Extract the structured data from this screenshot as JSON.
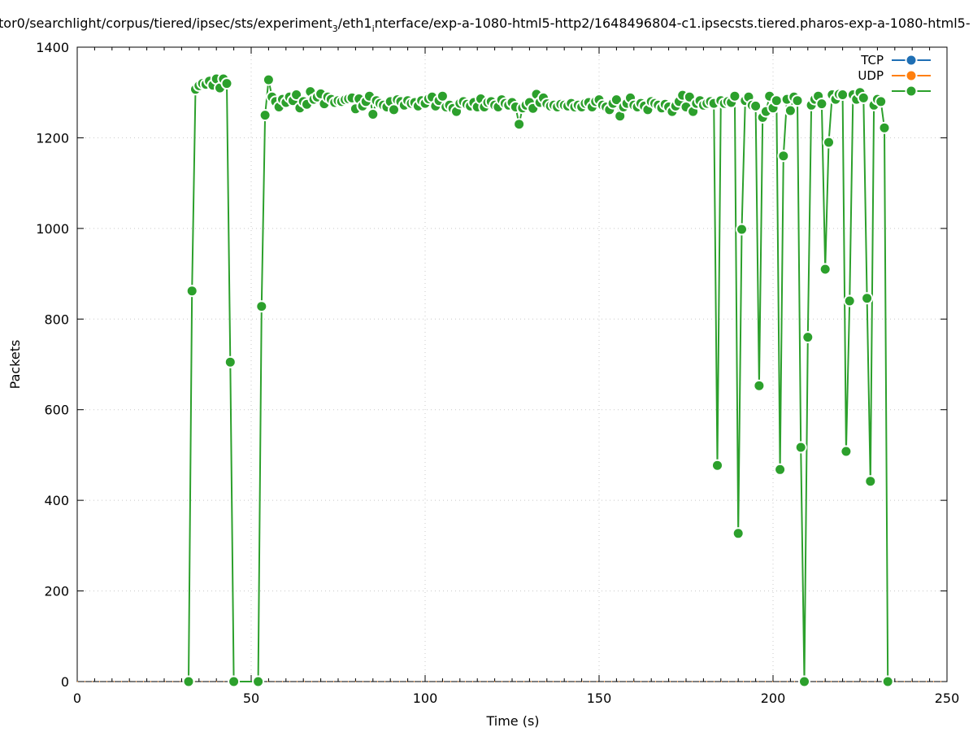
{
  "chart_data": {
    "type": "line",
    "title": "tor0/searchlight/corpus/tiered/ipsec/sts/experiment",
    "title_sub1": "3",
    "title_mid": "/eth1",
    "title_sub2": "i",
    "title_tail": "nterface/exp-a-1080-html5-http2/1648496804-c1.ipsecsts.tiered.pharos-exp-a-1080-html5-",
    "xlabel": "Time (s)",
    "ylabel": "Packets",
    "xlim": [
      0,
      250
    ],
    "ylim": [
      0,
      1400
    ],
    "x_ticks": [
      "0",
      "50",
      "100",
      "150",
      "200",
      "250"
    ],
    "y_ticks": [
      "0",
      "200",
      "400",
      "600",
      "800",
      "1000",
      "1200",
      "1400"
    ],
    "grid": true,
    "legend_position": "top-right",
    "series": [
      {
        "name": "TCP",
        "color": "#1f6fb4",
        "points": []
      },
      {
        "name": "UDP",
        "color": "#ff7f0e",
        "points": []
      },
      {
        "name": "",
        "color": "#2ca02c",
        "points": [
          [
            32,
            0
          ],
          [
            33,
            862
          ],
          [
            34,
            1307
          ],
          [
            35,
            1315
          ],
          [
            36,
            1320
          ],
          [
            37,
            1318
          ],
          [
            38,
            1325
          ],
          [
            39,
            1316
          ],
          [
            40,
            1330
          ],
          [
            41,
            1310
          ],
          [
            42,
            1330
          ],
          [
            43,
            1320
          ],
          [
            44,
            705
          ],
          [
            45,
            0
          ],
          [
            52,
            0
          ],
          [
            53,
            828
          ],
          [
            54,
            1250
          ],
          [
            55,
            1328
          ],
          [
            56,
            1290
          ],
          [
            57,
            1280
          ],
          [
            58,
            1268
          ],
          [
            59,
            1285
          ],
          [
            60,
            1278
          ],
          [
            61,
            1290
          ],
          [
            62,
            1282
          ],
          [
            63,
            1295
          ],
          [
            64,
            1266
          ],
          [
            65,
            1280
          ],
          [
            66,
            1274
          ],
          [
            67,
            1302
          ],
          [
            68,
            1285
          ],
          [
            69,
            1290
          ],
          [
            70,
            1297
          ],
          [
            71,
            1275
          ],
          [
            72,
            1290
          ],
          [
            73,
            1285
          ],
          [
            74,
            1278
          ],
          [
            75,
            1282
          ],
          [
            76,
            1280
          ],
          [
            77,
            1284
          ],
          [
            78,
            1286
          ],
          [
            79,
            1288
          ],
          [
            80,
            1264
          ],
          [
            81,
            1286
          ],
          [
            82,
            1270
          ],
          [
            83,
            1280
          ],
          [
            84,
            1292
          ],
          [
            85,
            1252
          ],
          [
            86,
            1282
          ],
          [
            87,
            1276
          ],
          [
            88,
            1272
          ],
          [
            89,
            1268
          ],
          [
            90,
            1280
          ],
          [
            91,
            1262
          ],
          [
            92,
            1284
          ],
          [
            93,
            1280
          ],
          [
            94,
            1272
          ],
          [
            95,
            1282
          ],
          [
            96,
            1276
          ],
          [
            97,
            1278
          ],
          [
            98,
            1270
          ],
          [
            99,
            1282
          ],
          [
            100,
            1276
          ],
          [
            101,
            1286
          ],
          [
            102,
            1290
          ],
          [
            103,
            1270
          ],
          [
            104,
            1282
          ],
          [
            105,
            1292
          ],
          [
            106,
            1268
          ],
          [
            107,
            1272
          ],
          [
            108,
            1265
          ],
          [
            109,
            1258
          ],
          [
            110,
            1276
          ],
          [
            111,
            1280
          ],
          [
            112,
            1274
          ],
          [
            113,
            1270
          ],
          [
            114,
            1278
          ],
          [
            115,
            1268
          ],
          [
            116,
            1286
          ],
          [
            117,
            1268
          ],
          [
            118,
            1278
          ],
          [
            119,
            1280
          ],
          [
            120,
            1272
          ],
          [
            121,
            1268
          ],
          [
            122,
            1284
          ],
          [
            123,
            1276
          ],
          [
            124,
            1272
          ],
          [
            125,
            1278
          ],
          [
            126,
            1268
          ],
          [
            127,
            1230
          ],
          [
            128,
            1266
          ],
          [
            129,
            1272
          ],
          [
            130,
            1278
          ],
          [
            131,
            1265
          ],
          [
            132,
            1296
          ],
          [
            133,
            1278
          ],
          [
            134,
            1288
          ],
          [
            135,
            1275
          ],
          [
            136,
            1270
          ],
          [
            137,
            1272
          ],
          [
            138,
            1268
          ],
          [
            139,
            1274
          ],
          [
            140,
            1272
          ],
          [
            141,
            1270
          ],
          [
            142,
            1276
          ],
          [
            143,
            1268
          ],
          [
            144,
            1272
          ],
          [
            145,
            1268
          ],
          [
            146,
            1276
          ],
          [
            147,
            1278
          ],
          [
            148,
            1268
          ],
          [
            149,
            1280
          ],
          [
            150,
            1284
          ],
          [
            151,
            1272
          ],
          [
            152,
            1268
          ],
          [
            153,
            1262
          ],
          [
            154,
            1276
          ],
          [
            155,
            1284
          ],
          [
            156,
            1248
          ],
          [
            157,
            1268
          ],
          [
            158,
            1276
          ],
          [
            159,
            1288
          ],
          [
            160,
            1272
          ],
          [
            161,
            1268
          ],
          [
            162,
            1276
          ],
          [
            163,
            1270
          ],
          [
            164,
            1262
          ],
          [
            165,
            1280
          ],
          [
            166,
            1276
          ],
          [
            167,
            1272
          ],
          [
            168,
            1266
          ],
          [
            169,
            1274
          ],
          [
            170,
            1268
          ],
          [
            171,
            1258
          ],
          [
            172,
            1270
          ],
          [
            173,
            1280
          ],
          [
            174,
            1294
          ],
          [
            175,
            1268
          ],
          [
            176,
            1290
          ],
          [
            177,
            1258
          ],
          [
            178,
            1276
          ],
          [
            179,
            1282
          ],
          [
            180,
            1272
          ],
          [
            181,
            1276
          ],
          [
            182,
            1280
          ],
          [
            183,
            1276
          ],
          [
            184,
            477
          ],
          [
            185,
            1282
          ],
          [
            186,
            1276
          ],
          [
            187,
            1280
          ],
          [
            188,
            1278
          ],
          [
            189,
            1292
          ],
          [
            190,
            327
          ],
          [
            191,
            998
          ],
          [
            192,
            1282
          ],
          [
            193,
            1290
          ],
          [
            194,
            1272
          ],
          [
            195,
            1270
          ],
          [
            196,
            653
          ],
          [
            197,
            1245
          ],
          [
            198,
            1258
          ],
          [
            199,
            1292
          ],
          [
            200,
            1266
          ],
          [
            201,
            1282
          ],
          [
            202,
            468
          ],
          [
            203,
            1160
          ],
          [
            204,
            1285
          ],
          [
            205,
            1260
          ],
          [
            206,
            1290
          ],
          [
            207,
            1282
          ],
          [
            208,
            517
          ],
          [
            209,
            0
          ],
          [
            210,
            760
          ],
          [
            211,
            1272
          ],
          [
            212,
            1285
          ],
          [
            213,
            1292
          ],
          [
            214,
            1275
          ],
          [
            215,
            910
          ],
          [
            216,
            1190
          ],
          [
            217,
            1295
          ],
          [
            218,
            1285
          ],
          [
            219,
            1296
          ],
          [
            220,
            1295
          ],
          [
            221,
            508
          ],
          [
            222,
            840
          ],
          [
            223,
            1295
          ],
          [
            224,
            1285
          ],
          [
            225,
            1300
          ],
          [
            226,
            1288
          ],
          [
            227,
            846
          ],
          [
            228,
            442
          ],
          [
            229,
            1272
          ],
          [
            230,
            1285
          ],
          [
            231,
            1280
          ],
          [
            232,
            1222
          ],
          [
            233,
            0
          ]
        ]
      }
    ]
  }
}
